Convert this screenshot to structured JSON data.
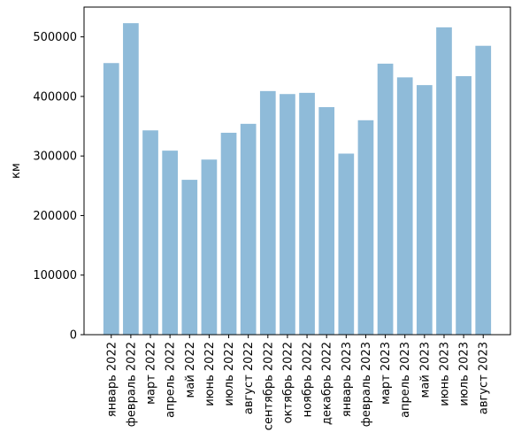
{
  "chart_data": {
    "type": "bar",
    "title": "",
    "xlabel": "",
    "ylabel": "км",
    "ylim": [
      0,
      550000
    ],
    "yticks": [
      0,
      100000,
      200000,
      300000,
      400000,
      500000
    ],
    "ytick_labels": [
      "0",
      "100000",
      "200000",
      "300000",
      "400000",
      "500000"
    ],
    "grid": false,
    "bar_color": "#1f77b4",
    "bar_opacity": 0.5,
    "categories": [
      "январь 2022",
      "февраль 2022",
      "март 2022",
      "апрель 2022",
      "май 2022",
      "июнь 2022",
      "июль 2022",
      "август 2022",
      "сентябрь 2022",
      "октябрь 2022",
      "ноябрь 2022",
      "декабрь 2022",
      "январь 2023",
      "февраль 2023",
      "март 2023",
      "апрель 2023",
      "май 2023",
      "июнь 2023",
      "июль 2023",
      "август 2023"
    ],
    "values": [
      456000,
      523000,
      343000,
      309000,
      260000,
      294000,
      339000,
      354000,
      409000,
      404000,
      406000,
      382000,
      304000,
      360000,
      455000,
      432000,
      419000,
      516000,
      434000,
      485000
    ]
  }
}
